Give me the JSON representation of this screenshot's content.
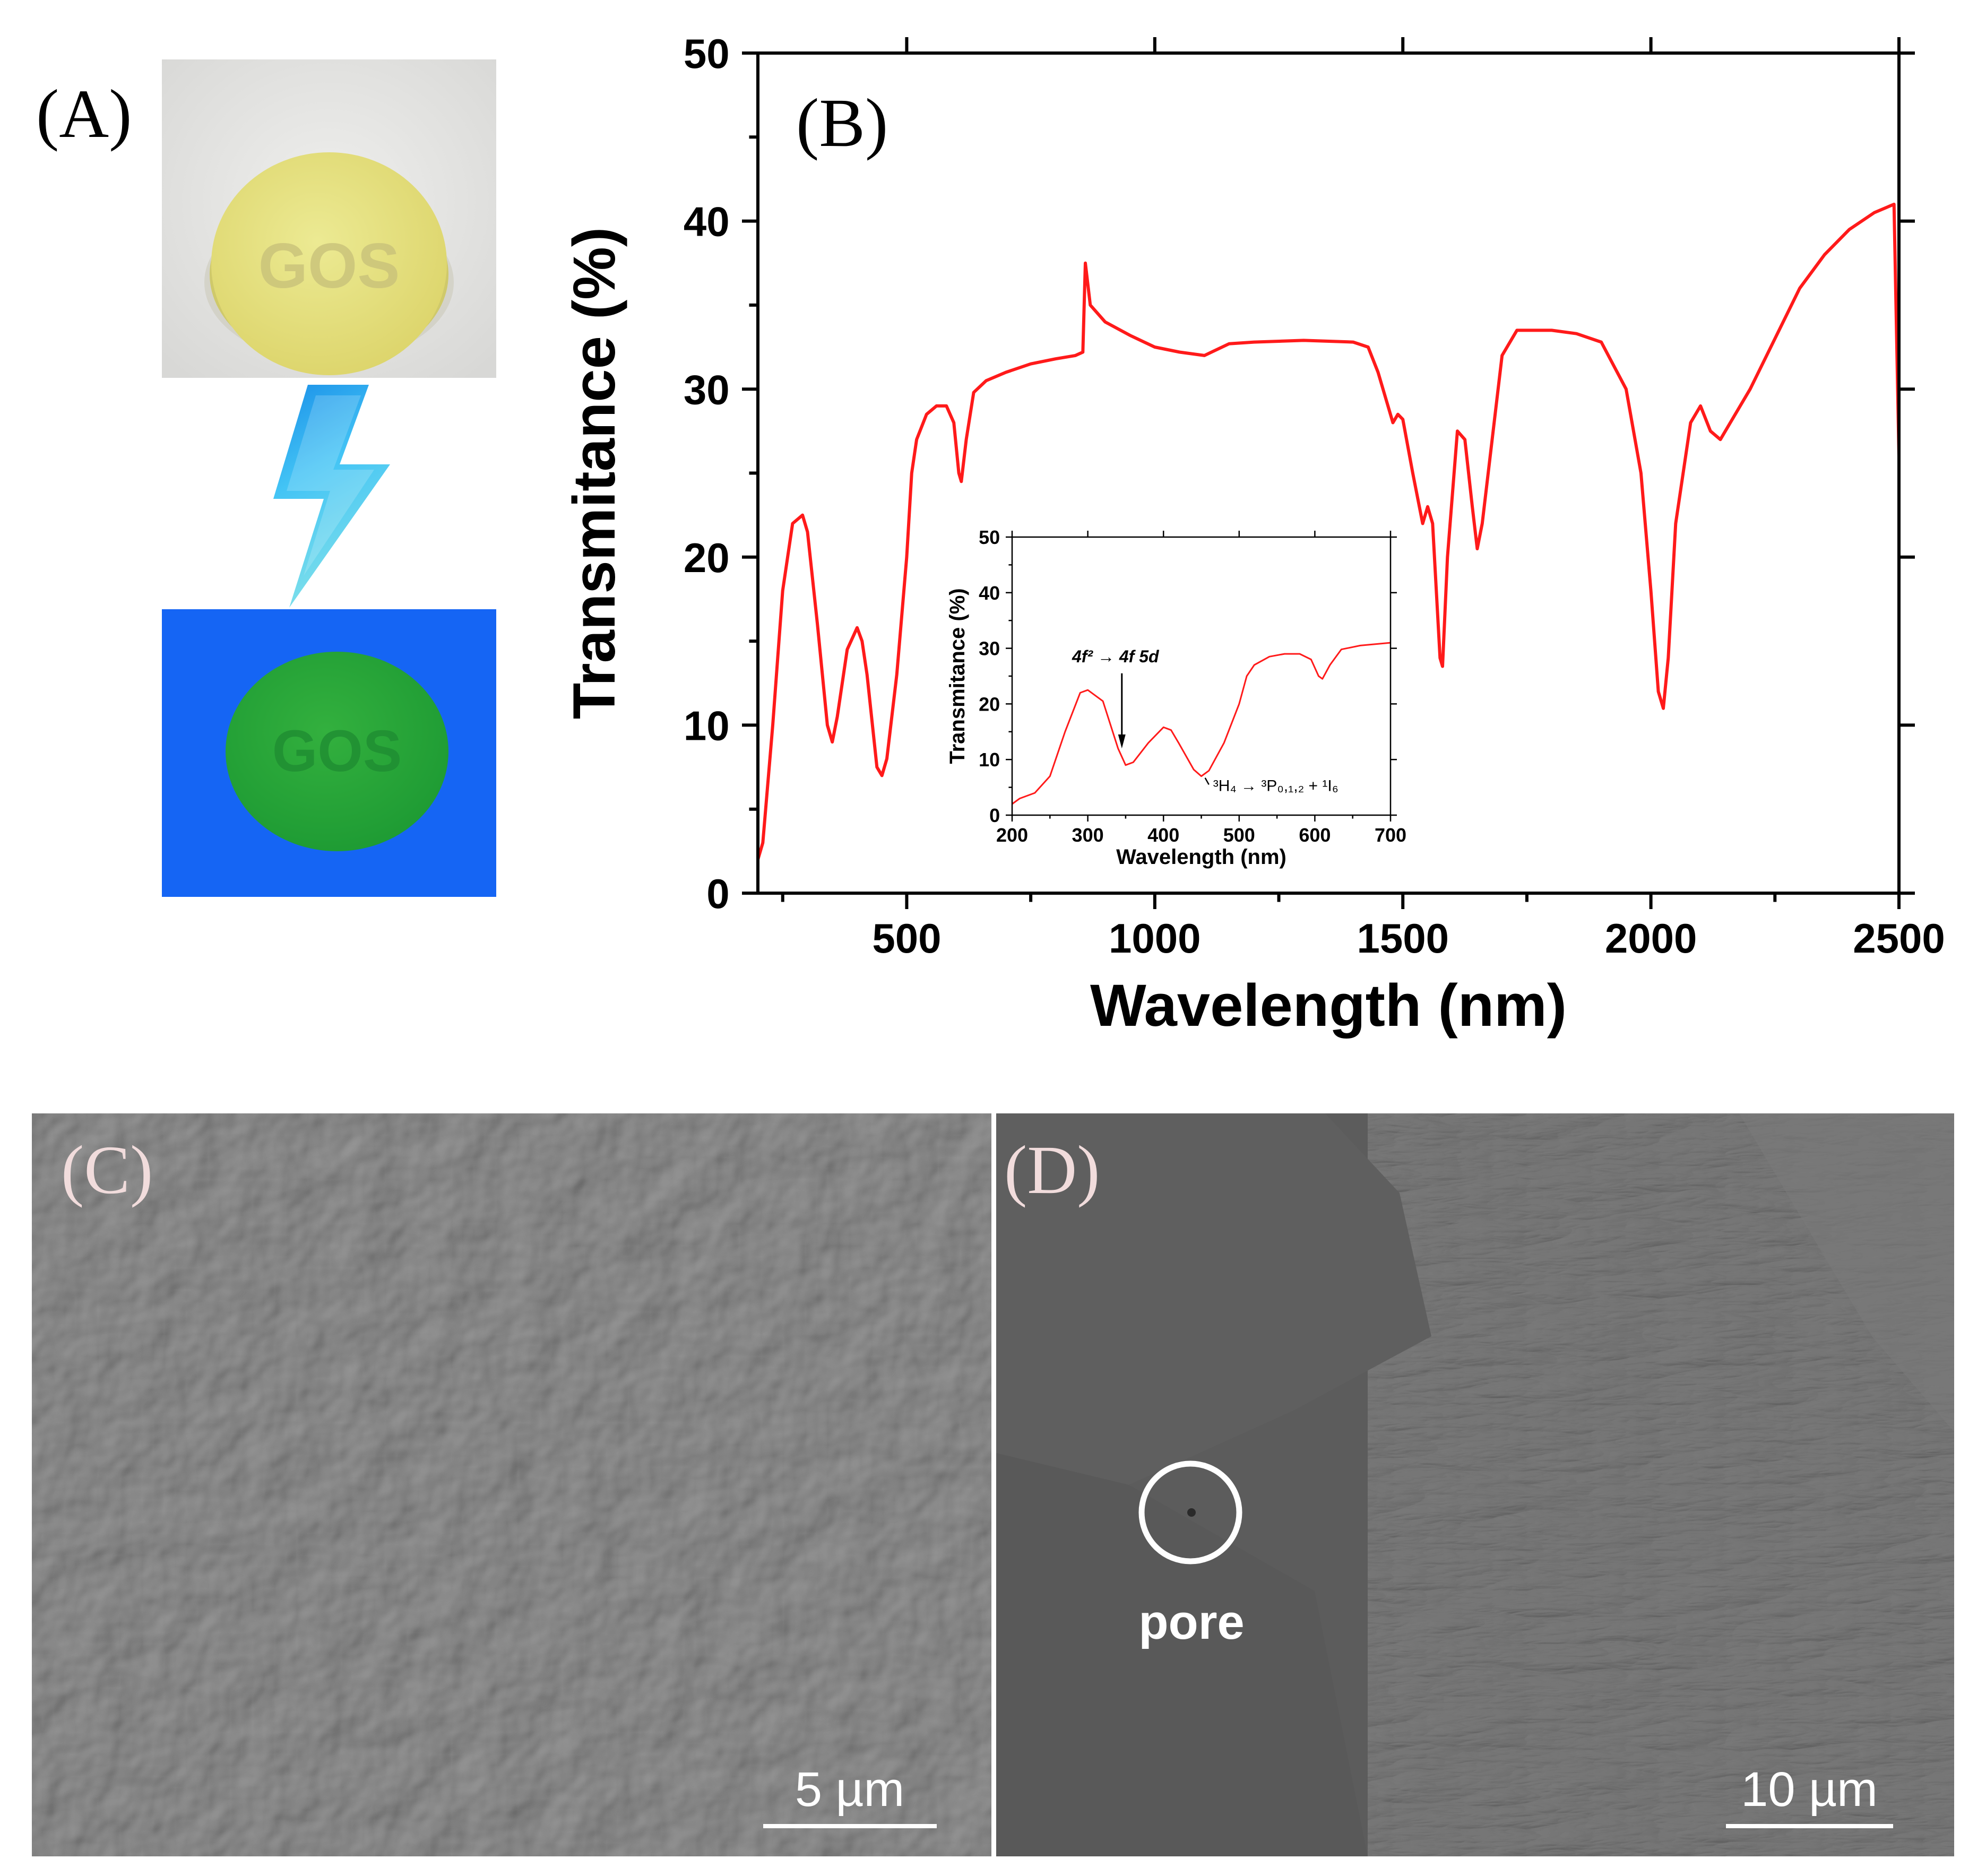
{
  "panels": {
    "a": {
      "label": "(A)",
      "sample_text": "GOS",
      "colors": {
        "disc_day": "#e9e27e",
        "background_day": "#e4e4e2",
        "disc_uv": "#23a436",
        "background_uv": "#1565f4",
        "bolt": "#29a9ef"
      }
    },
    "b": {
      "label": "(B)"
    },
    "c": {
      "label": "(C)",
      "scale_bar": "5 µm"
    },
    "d": {
      "label": "(D)",
      "scale_bar": "10 µm",
      "annotation": "pore"
    }
  },
  "chart_data": [
    {
      "type": "line",
      "title": "",
      "xlabel": "Wavelength (nm)",
      "ylabel": "Transmitance (%)",
      "xlim": [
        200,
        2500
      ],
      "ylim": [
        0,
        50
      ],
      "x_ticks": [
        500,
        1000,
        1500,
        2000,
        2500
      ],
      "y_ticks": [
        0,
        10,
        20,
        30,
        40,
        50
      ],
      "line_color": "#ff1a1a",
      "series": [
        {
          "x": [
            200,
            210,
            230,
            250,
            270,
            290,
            300,
            320,
            340,
            350,
            360,
            380,
            400,
            410,
            420,
            440,
            450,
            460,
            480,
            500,
            510,
            520,
            540,
            560,
            580,
            595,
            605,
            610,
            620,
            635,
            660,
            700,
            750,
            800,
            840,
            855,
            860,
            870,
            900,
            950,
            1000,
            1050,
            1100,
            1150,
            1200,
            1300,
            1400,
            1430,
            1450,
            1470,
            1480,
            1490,
            1500,
            1520,
            1540,
            1550,
            1560,
            1575,
            1580,
            1590,
            1610,
            1625,
            1640,
            1650,
            1660,
            1680,
            1700,
            1730,
            1800,
            1850,
            1900,
            1950,
            1980,
            2000,
            2015,
            2025,
            2035,
            2050,
            2080,
            2100,
            2120,
            2140,
            2160,
            2200,
            2250,
            2300,
            2350,
            2400,
            2450,
            2490,
            2500
          ],
          "values": [
            2,
            3,
            10,
            18,
            22,
            22.5,
            21.5,
            16,
            10,
            9,
            10.5,
            14.5,
            15.8,
            15,
            13,
            7.5,
            7,
            8,
            13,
            20,
            25,
            27,
            28.5,
            29,
            29,
            28,
            25,
            24.5,
            27,
            29.8,
            30.5,
            31,
            31.5,
            31.8,
            32,
            32.2,
            37.5,
            35,
            34,
            33.2,
            32.5,
            32.2,
            32,
            32.7,
            32.8,
            32.9,
            32.8,
            32.5,
            31,
            29,
            28,
            28.5,
            28.2,
            25,
            22,
            23,
            22,
            14,
            13.5,
            20,
            27.5,
            27,
            23,
            20.5,
            22,
            27,
            32,
            33.5,
            33.5,
            33.3,
            32.8,
            30,
            25,
            18,
            12,
            11,
            14,
            22,
            28,
            29,
            27.5,
            27,
            28,
            30,
            33,
            36,
            38,
            39.5,
            40.5,
            41,
            26
          ]
        }
      ]
    },
    {
      "type": "line",
      "title": "",
      "xlabel": "Wavelength (nm)",
      "ylabel": "Transmitance (%)",
      "xlim": [
        200,
        700
      ],
      "ylim": [
        0,
        50
      ],
      "x_ticks": [
        200,
        300,
        400,
        500,
        600,
        700
      ],
      "y_ticks": [
        0,
        10,
        20,
        30,
        40,
        50
      ],
      "line_color": "#ff1a1a",
      "annotations": [
        {
          "text": "4f² → 4f 5d",
          "x": 345,
          "y": 23
        },
        {
          "text": "³H₄ → ³P₀,₁,₂ + ¹I₆",
          "x": 460,
          "y": 5.5
        }
      ],
      "series": [
        {
          "x": [
            200,
            210,
            230,
            250,
            270,
            290,
            300,
            320,
            340,
            350,
            360,
            380,
            400,
            410,
            420,
            440,
            450,
            460,
            480,
            500,
            510,
            520,
            540,
            560,
            580,
            595,
            605,
            610,
            620,
            635,
            660,
            700
          ],
          "values": [
            2,
            3,
            4,
            7,
            15,
            22,
            22.5,
            20.5,
            12,
            9,
            9.5,
            13,
            15.8,
            15.3,
            13,
            8.2,
            7,
            8,
            13,
            20,
            25,
            27,
            28.5,
            29,
            29,
            28,
            25,
            24.5,
            27,
            29.8,
            30.5,
            31
          ]
        }
      ]
    }
  ]
}
